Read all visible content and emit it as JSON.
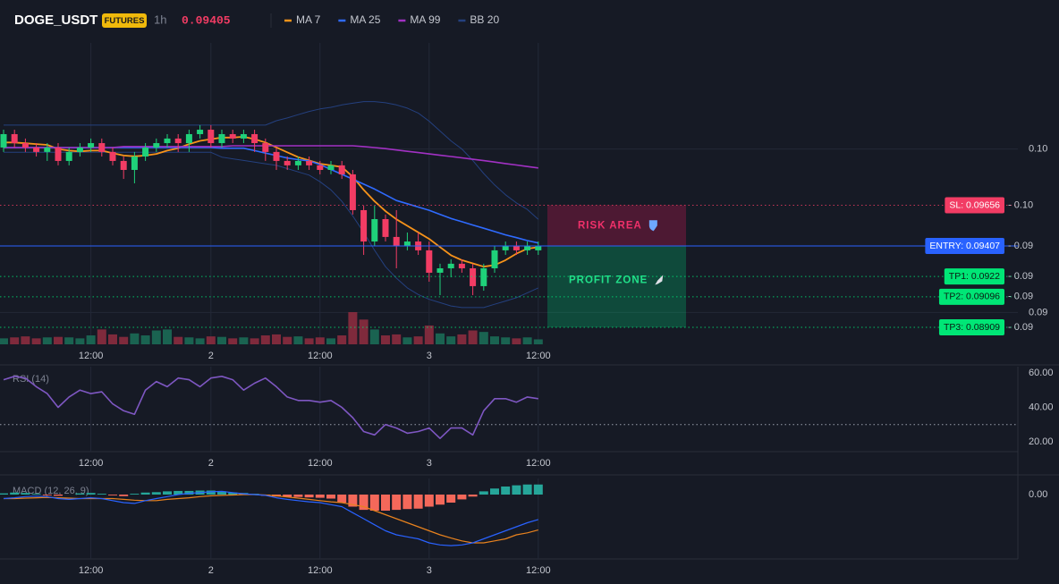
{
  "header": {
    "symbol": "DOGE_USDT",
    "badge": "FUTURES",
    "interval": "1h",
    "price": "0.09405"
  },
  "chart_data": [
    {
      "type": "candlestick",
      "categories": [
        null,
        null,
        null,
        null,
        null,
        null,
        null,
        null,
        "12:00",
        null,
        null,
        null,
        null,
        null,
        null,
        null,
        null,
        null,
        null,
        "2",
        null,
        null,
        null,
        null,
        null,
        null,
        null,
        null,
        null,
        "12:00",
        null,
        null,
        null,
        null,
        null,
        null,
        null,
        null,
        null,
        "3",
        null,
        null,
        null,
        null,
        null,
        null,
        null,
        null,
        null,
        "12:00"
      ],
      "open": [
        0.10009,
        0.10091,
        0.10036,
        0.10009,
        0.09982,
        0.10009,
        0.09927,
        0.09982,
        0.10009,
        0.10036,
        0.09982,
        0.09927,
        0.09872,
        0.09954,
        0.10009,
        0.10036,
        0.10064,
        0.10036,
        0.10091,
        0.10118,
        0.10036,
        0.10091,
        0.10064,
        0.10091,
        0.10036,
        0.09982,
        0.09927,
        0.099,
        0.09927,
        0.099,
        0.09872,
        0.099,
        0.09845,
        0.09626,
        0.09434,
        0.09571,
        0.09462,
        0.09407,
        0.09434,
        0.0938,
        0.09243,
        0.0927,
        0.09298,
        0.0927,
        0.09161,
        0.0927,
        0.0938,
        0.09407,
        0.0938,
        0.0938
      ],
      "high": [
        0.10118,
        0.10118,
        0.10064,
        0.10036,
        0.10036,
        0.10036,
        0.10009,
        0.10036,
        0.10064,
        0.10064,
        0.10009,
        0.09954,
        0.09982,
        0.10036,
        0.10064,
        0.10091,
        0.10091,
        0.10118,
        0.10146,
        0.10146,
        0.10118,
        0.10118,
        0.10118,
        0.10118,
        0.10064,
        0.10009,
        0.09954,
        0.09954,
        0.09954,
        0.09927,
        0.09927,
        0.09927,
        0.09872,
        0.09653,
        0.09653,
        0.09599,
        0.09626,
        0.09489,
        0.09489,
        0.09434,
        0.09298,
        0.09325,
        0.09325,
        0.09298,
        0.09298,
        0.09407,
        0.09434,
        0.09434,
        0.09434,
        0.09434
      ],
      "low": [
        0.09982,
        0.10009,
        0.09982,
        0.09954,
        0.09927,
        0.099,
        0.099,
        0.09954,
        0.09982,
        0.09954,
        0.099,
        0.09817,
        0.0979,
        0.09927,
        0.09982,
        0.10009,
        0.09982,
        0.09982,
        0.10064,
        0.10009,
        0.10009,
        0.10036,
        0.10036,
        0.09982,
        0.09927,
        0.09872,
        0.09872,
        0.09872,
        0.09872,
        0.09845,
        0.09845,
        0.09817,
        0.09599,
        0.09352,
        0.09407,
        0.09434,
        0.0927,
        0.0938,
        0.09352,
        0.09188,
        0.09106,
        0.09215,
        0.09243,
        0.09106,
        0.09133,
        0.09243,
        0.09352,
        0.09352,
        0.09352,
        0.09352
      ],
      "close": [
        0.10091,
        0.10036,
        0.10009,
        0.09982,
        0.10009,
        0.09927,
        0.09982,
        0.10009,
        0.10036,
        0.09982,
        0.09927,
        0.09872,
        0.09954,
        0.10009,
        0.10036,
        0.10064,
        0.10036,
        0.10091,
        0.10118,
        0.10036,
        0.10091,
        0.10064,
        0.10091,
        0.10036,
        0.09982,
        0.09927,
        0.099,
        0.09927,
        0.099,
        0.09872,
        0.099,
        0.09845,
        0.09626,
        0.09434,
        0.09571,
        0.09462,
        0.09407,
        0.09434,
        0.0938,
        0.09243,
        0.0927,
        0.09298,
        0.0927,
        0.09161,
        0.0927,
        0.0938,
        0.09407,
        0.0938,
        0.09407,
        0.09405
      ],
      "up_color": "#1fd17a",
      "down_color": "#f23c64",
      "volume": [
        12,
        14,
        16,
        12,
        14,
        15,
        14,
        12,
        18,
        30,
        20,
        15,
        22,
        18,
        28,
        30,
        15,
        14,
        12,
        16,
        15,
        12,
        14,
        12,
        18,
        20,
        15,
        16,
        12,
        14,
        12,
        18,
        65,
        50,
        30,
        18,
        20,
        14,
        16,
        38,
        22,
        16,
        20,
        28,
        25,
        16,
        14,
        12,
        14,
        10
      ],
      "series": [
        {
          "name": "MA 7",
          "color": "#f7931a",
          "values": [
            0.1004,
            0.1004,
            0.10035,
            0.1003,
            0.10025,
            0.1,
            0.0999,
            0.09985,
            0.0999,
            0.0999,
            0.09975,
            0.0996,
            0.09955,
            0.0996,
            0.0997,
            0.0999,
            0.10005,
            0.1003,
            0.1005,
            0.1006,
            0.1007,
            0.1007,
            0.10075,
            0.1006,
            0.1004,
            0.1001,
            0.0998,
            0.0995,
            0.0993,
            0.0991,
            0.099,
            0.0989,
            0.0983,
            0.0975,
            0.0968,
            0.0962,
            0.0957,
            0.0953,
            0.0949,
            0.0945,
            0.094,
            0.0935,
            0.0932,
            0.093,
            0.0928,
            0.0929,
            0.0932,
            0.0936,
            0.0939,
            0.094
          ]
        },
        {
          "name": "MA 25",
          "color": "#2f6bff",
          "values": [
            0.10009,
            0.10009,
            0.10009,
            0.10009,
            0.10009,
            0.10009,
            0.10009,
            0.10009,
            0.10009,
            0.10009,
            0.10009,
            0.10009,
            0.10009,
            0.10009,
            0.10009,
            0.10009,
            0.10009,
            0.10009,
            0.10009,
            0.10009,
            0.10005,
            0.10005,
            0.10005,
            0.0999,
            0.09975,
            0.0996,
            0.09945,
            0.09935,
            0.09927,
            0.09905,
            0.09875,
            0.09845,
            0.09815,
            0.09785,
            0.09755,
            0.0972,
            0.09685,
            0.09665,
            0.09645,
            0.09625,
            0.096,
            0.09575,
            0.09555,
            0.09535,
            0.09515,
            0.09495,
            0.09475,
            0.09458,
            0.0944,
            0.09425
          ]
        },
        {
          "name": "MA 99",
          "color": "#a231c4",
          "values": [
            0.10009,
            0.10009,
            0.10009,
            0.10009,
            0.10009,
            0.10009,
            0.10009,
            0.10009,
            0.10009,
            0.10009,
            0.10009,
            0.10015,
            0.10015,
            0.10015,
            0.10015,
            0.10015,
            0.10015,
            0.10015,
            0.10015,
            0.10015,
            0.10015,
            0.1002,
            0.1002,
            0.1002,
            0.1002,
            0.1002,
            0.1002,
            0.1002,
            0.1002,
            0.1002,
            0.1002,
            0.1002,
            0.1002,
            0.10015,
            0.10009,
            0.10002,
            0.09994,
            0.09986,
            0.09978,
            0.0997,
            0.09962,
            0.09954,
            0.09946,
            0.09937,
            0.09929,
            0.0992,
            0.09911,
            0.09902,
            0.09893,
            0.09884
          ]
        },
        {
          "name": "BB 20",
          "color": "#24407f",
          "upper": [
            0.10146,
            0.10146,
            0.10146,
            0.10146,
            0.10146,
            0.10146,
            0.10146,
            0.10146,
            0.10146,
            0.10146,
            0.10146,
            0.10146,
            0.10146,
            0.10146,
            0.10146,
            0.10146,
            0.10146,
            0.10146,
            0.10146,
            0.10146,
            0.10146,
            0.10146,
            0.10146,
            0.10146,
            0.10146,
            0.10173,
            0.1019,
            0.1021,
            0.1023,
            0.10245,
            0.10255,
            0.1027,
            0.1028,
            0.1029,
            0.1029,
            0.10283,
            0.1027,
            0.1025,
            0.1022,
            0.1017,
            0.1011,
            0.1005,
            0.1,
            0.0993,
            0.0985,
            0.0978,
            0.0972,
            0.0967,
            0.0963,
            0.0957
          ],
          "lower": [
            0.0998,
            0.0998,
            0.0998,
            0.0998,
            0.0998,
            0.0998,
            0.0998,
            0.0998,
            0.0998,
            0.0998,
            0.0998,
            0.0998,
            0.0998,
            0.0998,
            0.0998,
            0.0998,
            0.0998,
            0.0998,
            0.0998,
            0.0998,
            0.0995,
            0.0994,
            0.0993,
            0.0992,
            0.0991,
            0.099,
            0.0988,
            0.0986,
            0.0984,
            0.098,
            0.0975,
            0.0968,
            0.0959,
            0.0949,
            0.0938,
            0.0928,
            0.0921,
            0.0915,
            0.0911,
            0.0908,
            0.0906,
            0.0904,
            0.0903,
            0.0903,
            0.0903,
            0.0905,
            0.0907,
            0.0909,
            0.0912,
            0.0915
          ]
        }
      ],
      "ylim": [
        0.08805,
        0.10649
      ],
      "yticks": [
        {
          "value": 0.1,
          "label": "0.10"
        },
        0.09
      ],
      "grid": true,
      "levels": [
        {
          "label": "SL: 0.09656",
          "value": 0.09656,
          "axis_label": "- 0.10",
          "color": "#f23c64",
          "text_color": "#ffffff",
          "style": "dotted"
        },
        {
          "label": "ENTRY: 0.09407",
          "value": 0.09407,
          "axis_label": "- 0.09",
          "color": "#2962ff",
          "text_color": "#ffffff",
          "style": "solid"
        },
        {
          "label": "TP1: 0.0922",
          "value": 0.0922,
          "axis_label": "- 0.09",
          "color": "#00e676",
          "text_color": "#0b1a12",
          "style": "dotted"
        },
        {
          "label": "TP2: 0.09096",
          "value": 0.09096,
          "axis_label": "- 0.09",
          "color": "#00e676",
          "text_color": "#0b1a12",
          "style": "dotted"
        },
        {
          "label": "TP3: 0.08909",
          "value": 0.08909,
          "axis_label": "- 0.09",
          "color": "#00e676",
          "text_color": "#0b1a12",
          "style": "dotted"
        }
      ],
      "zones": [
        {
          "label": "RISK AREA",
          "color": "#e0185a",
          "label_color": "#f0306a"
        },
        {
          "label": "PROFIT ZONE",
          "color": "#00c878",
          "label_color": "#22e08a"
        }
      ]
    },
    {
      "type": "line",
      "title": "RSI (14)",
      "categories": [
        null,
        null,
        null,
        null,
        null,
        null,
        null,
        null,
        "12:00",
        null,
        null,
        null,
        null,
        null,
        null,
        null,
        null,
        null,
        null,
        "2",
        null,
        null,
        null,
        null,
        null,
        null,
        null,
        null,
        null,
        "12:00",
        null,
        null,
        null,
        null,
        null,
        null,
        null,
        null,
        null,
        "3",
        null,
        null,
        null,
        null,
        null,
        null,
        null,
        null,
        null,
        "12:00"
      ],
      "values": [
        56,
        58,
        57,
        52,
        48,
        40,
        46,
        50,
        48,
        49,
        42,
        38,
        36,
        50,
        55,
        52,
        57,
        56,
        52,
        57,
        58,
        56,
        50,
        54,
        57,
        52,
        46,
        44,
        44,
        43,
        44,
        40,
        34,
        26,
        24,
        30,
        28,
        25,
        26,
        28,
        22,
        28,
        28,
        24,
        38,
        45,
        45,
        43,
        46,
        45
      ],
      "color": "#7e57c2",
      "reference_lines": [
        30
      ],
      "ylim": [
        14.3,
        63.6
      ],
      "yticks": [
        {
          "value": 20,
          "label": "20.00"
        },
        {
          "value": 40,
          "label": "40.00"
        },
        {
          "value": 60,
          "label": "60.00"
        }
      ],
      "grid": false
    },
    {
      "type": "macd",
      "title": "MACD (12, 26, 9)",
      "categories": [
        null,
        null,
        null,
        null,
        null,
        null,
        null,
        null,
        "12:00",
        null,
        null,
        null,
        null,
        null,
        null,
        null,
        null,
        null,
        null,
        "2",
        null,
        null,
        null,
        null,
        null,
        null,
        null,
        null,
        null,
        "12:00",
        null,
        null,
        null,
        null,
        null,
        null,
        null,
        null,
        null,
        "3",
        null,
        null,
        null,
        null,
        null,
        null,
        null,
        null,
        null,
        "12:00"
      ],
      "histogram": [
        3e-05,
        5e-05,
        4e-05,
        2e-05,
        -2e-05,
        -3e-05,
        0,
        3e-05,
        4e-05,
        2e-05,
        -2e-05,
        -4e-05,
        2e-05,
        5e-05,
        6e-05,
        8e-05,
        9e-05,
        9e-05,
        0.0001,
        0.0001,
        8e-05,
        5e-05,
        4e-05,
        2e-05,
        -3e-05,
        -5e-05,
        -6e-05,
        -6e-05,
        -7e-05,
        -8e-05,
        -0.0001,
        -0.0002,
        -0.0003,
        -0.00038,
        -0.0004,
        -0.0004,
        -0.00038,
        -0.00036,
        -0.00035,
        -0.0003,
        -0.00025,
        -0.0002,
        -0.00012,
        -5e-05,
        8e-05,
        0.00015,
        0.0002,
        0.00023,
        0.00025,
        0.00025
      ],
      "macd": [
        -0.0001,
        -8e-05,
        -5e-05,
        -4e-05,
        -5e-05,
        -0.0001,
        -0.00012,
        -0.0001,
        -8e-05,
        -0.0001,
        -0.00015,
        -0.0002,
        -0.00022,
        -0.00015,
        -0.0001,
        -5e-05,
        0,
        3e-05,
        5e-05,
        7e-05,
        8e-05,
        5e-05,
        2e-05,
        0,
        -2e-05,
        -8e-05,
        -0.00012,
        -0.00015,
        -0.00018,
        -0.0002,
        -0.00025,
        -0.0003,
        -0.00045,
        -0.0006,
        -0.00075,
        -0.0009,
        -0.001,
        -0.00105,
        -0.0011,
        -0.0012,
        -0.00125,
        -0.00127,
        -0.00125,
        -0.0012,
        -0.0011,
        -0.001,
        -0.0009,
        -0.0008,
        -0.0007,
        -0.00062
      ],
      "signal": [
        -0.0001,
        -0.0001,
        -9e-05,
        -8e-05,
        -7e-05,
        -8e-05,
        -9e-05,
        -0.0001,
        -0.0001,
        -0.0001,
        -0.0001,
        -0.00012,
        -0.00014,
        -0.00015,
        -0.00015,
        -0.00012,
        -0.0001,
        -8e-05,
        -5e-05,
        -3e-05,
        -2e-05,
        -1e-05,
        0,
        0,
        -1e-05,
        -3e-05,
        -6e-05,
        -9e-05,
        -0.00012,
        -0.00015,
        -0.00018,
        -0.0002,
        -0.00025,
        -0.0003,
        -0.0004,
        -0.0005,
        -0.0006,
        -0.0007,
        -0.0008,
        -0.0009,
        -0.001,
        -0.00108,
        -0.00115,
        -0.0012,
        -0.0012,
        -0.00115,
        -0.0011,
        -0.001,
        -0.00095,
        -0.00088
      ],
      "positive_color": "#26a69a",
      "negative_color": "#f4685a",
      "macd_color": "#2962ff",
      "signal_color": "#e8821e",
      "ylim": [
        -0.0016,
        0.0004
      ],
      "yticks": [
        {
          "value": 0,
          "label": "0.00"
        }
      ],
      "grid": false
    }
  ]
}
